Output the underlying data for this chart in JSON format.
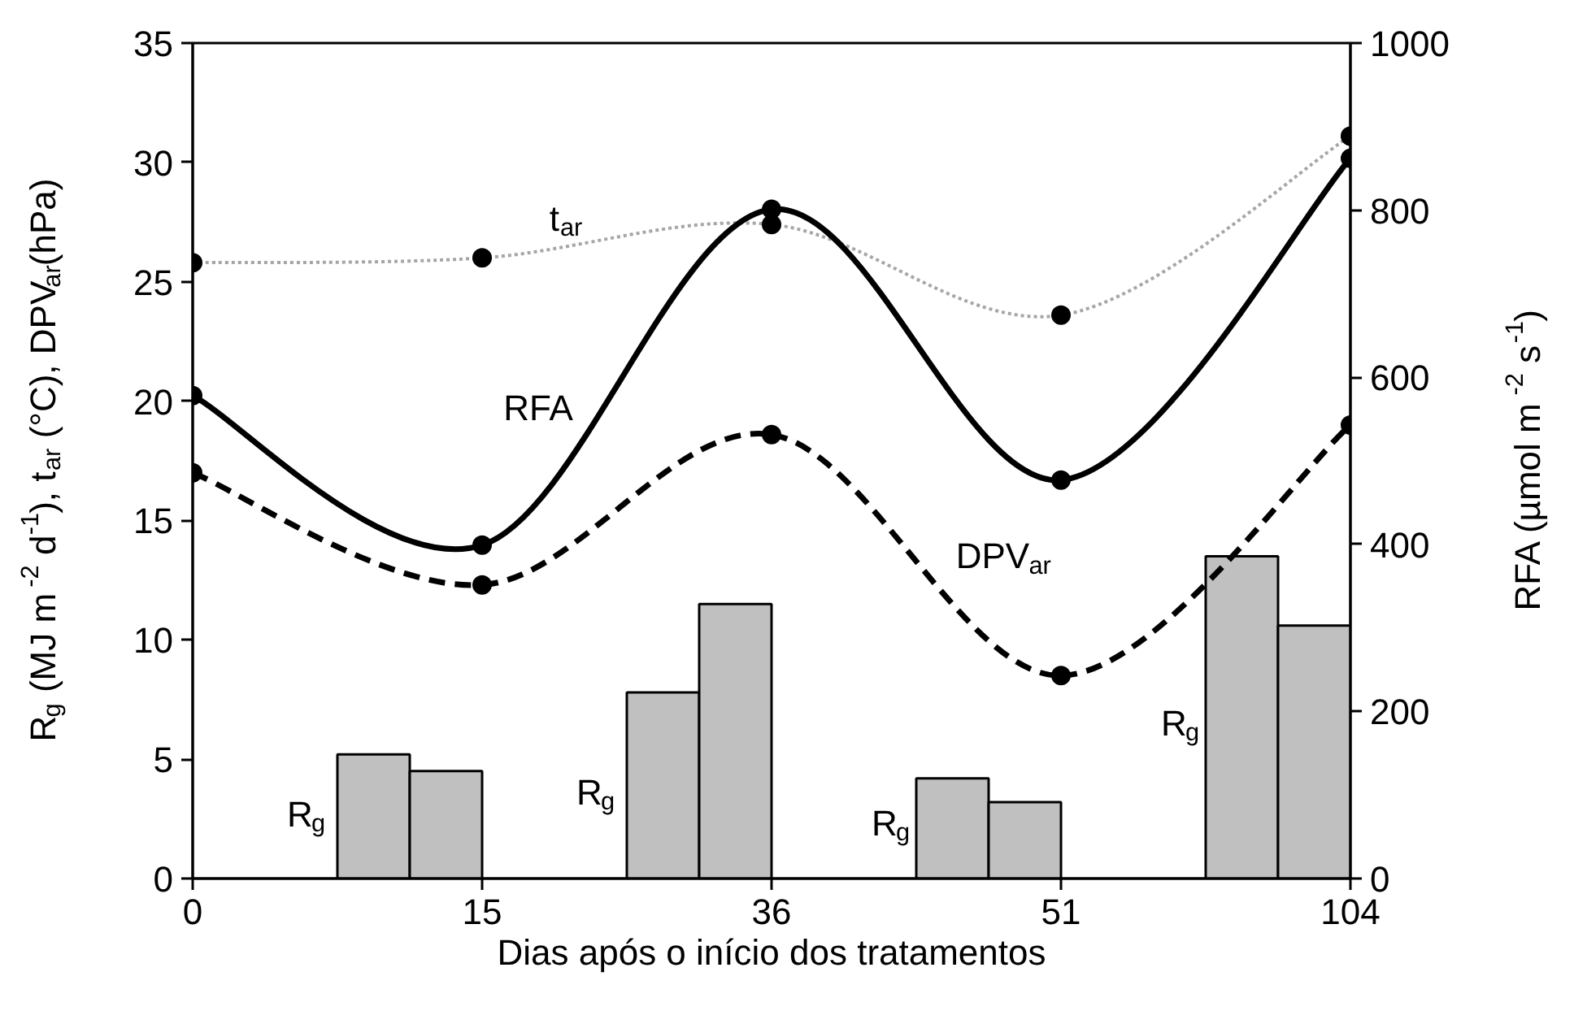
{
  "chart_data": {
    "type": "line",
    "xlabel": "Dias após o início dos tratamentos",
    "ylabel": "R$_{g}$ (MJ m$^{-2}$ d$^{-1}$), t$_{ar}$ (°C), DPV$_{ar}$(hPa)",
    "y2label": "RFA (µmol m$^{-2}$ s$^{-1}$)",
    "categories": [
      "0",
      "15",
      "36",
      "51",
      "104"
    ],
    "ylim": [
      0,
      35
    ],
    "yticks": [
      0,
      5,
      10,
      15,
      20,
      25,
      30,
      35
    ],
    "y2lim": [
      0,
      1000
    ],
    "y2ticks": [
      0,
      200,
      400,
      600,
      800,
      1000
    ],
    "marker": "circle",
    "series": [
      {
        "type": "bar",
        "color": "#c0c0c0",
        "values": [
          null,
          5.2,
          7.8,
          4.2,
          13.5
        ]
      },
      {
        "type": "bar",
        "color": "#c0c0c0",
        "values": [
          null,
          4.5,
          11.5,
          3.2,
          10.6
        ]
      },
      {
        "color": "#a6a6a6",
        "line_style": "dotted",
        "values": [
          25.8,
          26.0,
          27.4,
          23.6,
          31.1
        ]
      },
      {
        "color": "#000000",
        "line_style": "solid",
        "axis": "y2",
        "values": [
          578,
          399,
          801,
          477,
          862
        ]
      },
      {
        "color": "#000000",
        "line_style": "dashed",
        "values": [
          17.0,
          12.3,
          18.6,
          8.5,
          19.0
        ]
      }
    ],
    "annotations": [
      "t$_{ar}$",
      "RFA",
      "DPV$_{ar}$",
      "R$_{g}$",
      "R$_{g}$",
      "R$_{g}$",
      "R$_{g}$"
    ]
  }
}
